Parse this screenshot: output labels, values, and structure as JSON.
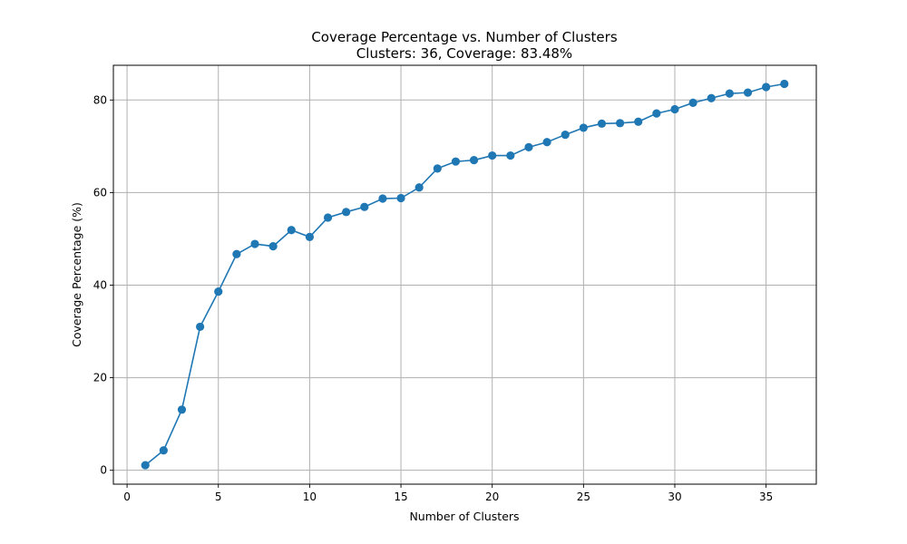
{
  "chart_data": {
    "type": "line",
    "title": "Coverage Percentage vs. Number of Clusters",
    "subtitle": "Clusters: 36, Coverage: 83.48%",
    "xlabel": "Number of Clusters",
    "ylabel": "Coverage Percentage (%)",
    "xlim": [
      -0.75,
      37.75
    ],
    "ylim": [
      -3.0,
      87.5
    ],
    "xticks": [
      0,
      5,
      10,
      15,
      20,
      25,
      30,
      35
    ],
    "yticks": [
      0,
      20,
      40,
      60,
      80
    ],
    "grid": true,
    "marker": "circle",
    "color": "#1f77b4",
    "x": [
      1,
      2,
      3,
      4,
      5,
      6,
      7,
      8,
      9,
      10,
      11,
      12,
      13,
      14,
      15,
      16,
      17,
      18,
      19,
      20,
      21,
      22,
      23,
      24,
      25,
      26,
      27,
      28,
      29,
      30,
      31,
      32,
      33,
      34,
      35,
      36
    ],
    "y": [
      1.1,
      4.3,
      13.1,
      31.0,
      38.6,
      46.7,
      48.9,
      48.4,
      51.9,
      50.4,
      54.6,
      55.8,
      56.9,
      58.7,
      58.8,
      61.1,
      65.2,
      66.7,
      67.0,
      68.0,
      68.0,
      69.8,
      70.9,
      72.5,
      74.0,
      74.9,
      75.0,
      75.3,
      77.1,
      78.0,
      79.4,
      80.4,
      81.4,
      81.6,
      82.8,
      83.48
    ]
  }
}
